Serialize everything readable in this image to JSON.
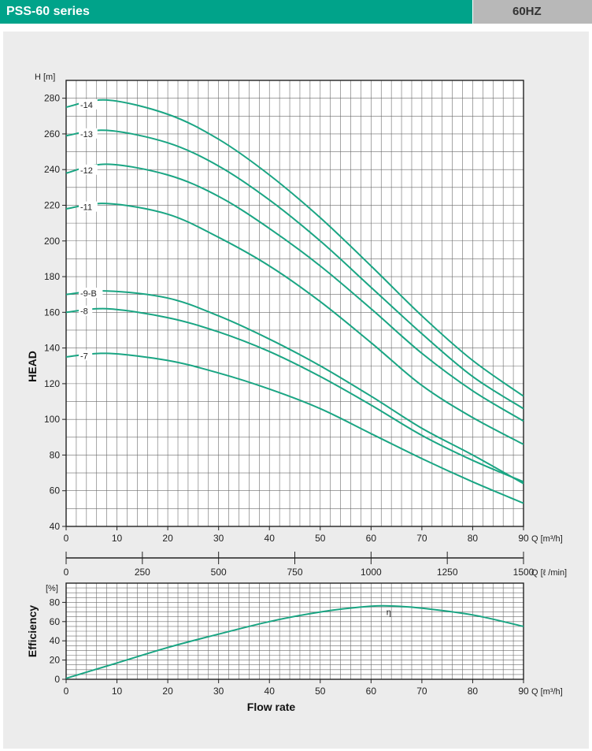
{
  "header": {
    "title": "PSS-60 series",
    "frequency": "60HZ"
  },
  "colors": {
    "accent": "#00a38a",
    "curve": "#1aa583",
    "grid": "#6b6b6b",
    "header_gray": "#b8b8b8",
    "panel": "#ececec"
  },
  "chart_data": [
    {
      "type": "line",
      "ylabel": "HEAD",
      "yunit": "H [m]",
      "xunit": "Q [m³/h]",
      "xlim": [
        0,
        90
      ],
      "ylim": [
        40,
        290
      ],
      "x_ticks": [
        0,
        10,
        20,
        30,
        40,
        50,
        60,
        70,
        80,
        90
      ],
      "y_ticks": [
        40,
        60,
        80,
        100,
        120,
        140,
        160,
        180,
        200,
        220,
        240,
        260,
        280
      ],
      "grid": true,
      "series": [
        {
          "name": "-14",
          "x": [
            0,
            8,
            20,
            30,
            40,
            50,
            60,
            70,
            80,
            90
          ],
          "values": [
            275,
            279,
            271,
            257,
            237,
            213,
            186,
            158,
            133,
            113
          ]
        },
        {
          "name": "-13",
          "x": [
            0,
            8,
            20,
            30,
            40,
            50,
            60,
            70,
            80,
            90
          ],
          "values": [
            259,
            262,
            255,
            242,
            223,
            200,
            174,
            148,
            124,
            106
          ]
        },
        {
          "name": "-12",
          "x": [
            0,
            8,
            20,
            30,
            40,
            50,
            60,
            70,
            80,
            90
          ],
          "values": [
            238,
            243,
            237,
            225,
            207,
            186,
            162,
            137,
            116,
            99
          ]
        },
        {
          "name": "-11",
          "x": [
            0,
            8,
            20,
            30,
            40,
            50,
            60,
            70,
            80,
            90
          ],
          "values": [
            218,
            221,
            215,
            202,
            186,
            166,
            143,
            119,
            101,
            86
          ]
        },
        {
          "name": "-9-B",
          "x": [
            0,
            8,
            20,
            30,
            40,
            50,
            60,
            70,
            80,
            90
          ],
          "values": [
            170,
            172,
            168,
            158,
            145,
            130,
            113,
            95,
            80,
            64
          ]
        },
        {
          "name": "-8",
          "x": [
            0,
            8,
            20,
            30,
            40,
            50,
            60,
            70,
            80,
            90
          ],
          "values": [
            160,
            162,
            157,
            149,
            138,
            124,
            108,
            91,
            77,
            65
          ]
        },
        {
          "name": "-7",
          "x": [
            0,
            8,
            20,
            30,
            40,
            50,
            60,
            70,
            80,
            90
          ],
          "values": [
            135,
            137,
            133,
            126,
            117,
            106,
            92,
            78,
            65,
            53
          ]
        }
      ]
    },
    {
      "type": "axis",
      "xunit": "Q [ℓ /min]",
      "xlim": [
        0,
        1500
      ],
      "x_ticks": [
        0,
        250,
        500,
        750,
        1000,
        1250,
        1500
      ]
    },
    {
      "type": "line",
      "ylabel": "Efficiency",
      "yunit": "[%]",
      "xunit": "Q [m³/h]",
      "xlabel": "Flow rate",
      "xlim": [
        0,
        90
      ],
      "ylim": [
        0,
        100
      ],
      "x_ticks": [
        0,
        10,
        20,
        30,
        40,
        50,
        60,
        70,
        80,
        90
      ],
      "y_ticks": [
        0,
        20,
        40,
        60,
        80
      ],
      "grid": true,
      "series": [
        {
          "name": "η",
          "x": [
            0,
            10,
            20,
            30,
            40,
            50,
            60,
            65,
            70,
            80,
            90
          ],
          "values": [
            1,
            17,
            33,
            47,
            60,
            70,
            76,
            76,
            74,
            67,
            55
          ]
        }
      ]
    }
  ]
}
